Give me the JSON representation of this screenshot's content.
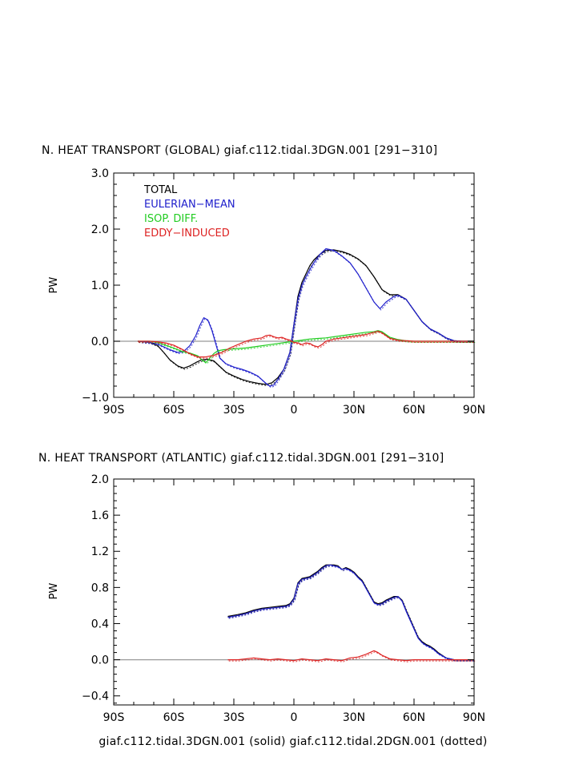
{
  "footer": "giaf.c112.tidal.3DGN.001 (solid) giaf.c112.tidal.2DGN.001 (dotted)",
  "chart_data": [
    {
      "type": "line",
      "title": "N. HEAT TRANSPORT (GLOBAL) giaf.c112.tidal.3DGN.001 [291−310]",
      "xlabel": "",
      "ylabel": "PW",
      "xlim": [
        -90,
        90
      ],
      "ylim": [
        -1.0,
        3.0
      ],
      "xticks": [
        -90,
        -60,
        -30,
        0,
        30,
        60,
        90
      ],
      "xticklabels": [
        "90S",
        "60S",
        "30S",
        "0",
        "30N",
        "60N",
        "90N"
      ],
      "yticks": [
        -1.0,
        0.0,
        1.0,
        2.0,
        3.0
      ],
      "yticklabels": [
        "−1.0",
        "0.0",
        "1.0",
        "2.0",
        "3.0"
      ],
      "legend_position": "top-left",
      "series": [
        {
          "name": "TOTAL",
          "color": "#000000",
          "x": [
            -78,
            -72,
            -68,
            -65,
            -62,
            -58,
            -55,
            -52,
            -49,
            -46,
            -43,
            -40,
            -37,
            -34,
            -30,
            -26,
            -22,
            -18,
            -14,
            -11,
            -8,
            -5,
            -2,
            0,
            2,
            4,
            6,
            8,
            10,
            13,
            16,
            20,
            24,
            28,
            32,
            36,
            40,
            44,
            48,
            52,
            56,
            60,
            64,
            68,
            72,
            76,
            80,
            84,
            90
          ],
          "y": [
            0.0,
            -0.02,
            -0.08,
            -0.2,
            -0.33,
            -0.44,
            -0.48,
            -0.44,
            -0.38,
            -0.33,
            -0.32,
            -0.35,
            -0.45,
            -0.55,
            -0.62,
            -0.68,
            -0.72,
            -0.75,
            -0.77,
            -0.74,
            -0.65,
            -0.5,
            -0.2,
            0.3,
            0.8,
            1.05,
            1.2,
            1.35,
            1.45,
            1.55,
            1.62,
            1.63,
            1.6,
            1.55,
            1.47,
            1.35,
            1.15,
            0.92,
            0.83,
            0.83,
            0.75,
            0.55,
            0.35,
            0.22,
            0.15,
            0.06,
            0.01,
            0.0,
            0.0
          ]
        },
        {
          "name": "EULERIAN−MEAN",
          "color": "#2020cc",
          "x": [
            -78,
            -72,
            -68,
            -65,
            -62,
            -58,
            -55,
            -52,
            -49,
            -47,
            -45,
            -43,
            -41,
            -39,
            -37,
            -34,
            -30,
            -26,
            -22,
            -18,
            -14,
            -12,
            -10,
            -8,
            -5,
            -2,
            0,
            2,
            4,
            6,
            8,
            10,
            13,
            16,
            20,
            24,
            28,
            32,
            36,
            40,
            43,
            46,
            50,
            52,
            56,
            60,
            64,
            68,
            72,
            76,
            80,
            84,
            90
          ],
          "y": [
            0.0,
            -0.02,
            -0.05,
            -0.1,
            -0.15,
            -0.2,
            -0.18,
            -0.08,
            0.1,
            0.28,
            0.42,
            0.38,
            0.2,
            -0.05,
            -0.3,
            -0.4,
            -0.46,
            -0.5,
            -0.55,
            -0.62,
            -0.75,
            -0.8,
            -0.78,
            -0.68,
            -0.5,
            -0.2,
            0.3,
            0.75,
            1.0,
            1.15,
            1.28,
            1.4,
            1.55,
            1.65,
            1.62,
            1.52,
            1.4,
            1.2,
            0.95,
            0.7,
            0.58,
            0.7,
            0.8,
            0.82,
            0.75,
            0.55,
            0.35,
            0.22,
            0.15,
            0.06,
            0.01,
            0.0,
            0.0
          ]
        },
        {
          "name": "ISOP. DIFF.",
          "color": "#22cc22",
          "x": [
            -78,
            -72,
            -68,
            -64,
            -60,
            -56,
            -52,
            -48,
            -46,
            -44,
            -42,
            -40,
            -38,
            -35,
            -32,
            -28,
            -24,
            -20,
            -16,
            -12,
            -8,
            -4,
            0,
            4,
            8,
            12,
            16,
            20,
            24,
            28,
            32,
            36,
            40,
            42,
            44,
            46,
            48,
            52,
            56,
            60,
            64,
            68,
            72,
            76,
            80,
            84,
            90
          ],
          "y": [
            0.0,
            0.0,
            -0.02,
            -0.07,
            -0.12,
            -0.18,
            -0.21,
            -0.26,
            -0.33,
            -0.38,
            -0.3,
            -0.22,
            -0.17,
            -0.15,
            -0.14,
            -0.13,
            -0.12,
            -0.1,
            -0.08,
            -0.06,
            -0.04,
            -0.02,
            0.0,
            0.02,
            0.04,
            0.05,
            0.06,
            0.08,
            0.1,
            0.12,
            0.14,
            0.16,
            0.17,
            0.19,
            0.17,
            0.12,
            0.07,
            0.03,
            0.01,
            0.0,
            0.0,
            0.0,
            0.0,
            0.0,
            0.0,
            0.0,
            0.0
          ]
        },
        {
          "name": "EDDY−INDUCED",
          "color": "#dd2222",
          "x": [
            -78,
            -72,
            -68,
            -64,
            -60,
            -56,
            -52,
            -48,
            -44,
            -40,
            -36,
            -32,
            -28,
            -24,
            -20,
            -16,
            -14,
            -12,
            -10,
            -8,
            -6,
            -4,
            -2,
            0,
            2,
            4,
            6,
            8,
            10,
            12,
            14,
            16,
            18,
            20,
            24,
            28,
            32,
            36,
            40,
            42,
            44,
            46,
            48,
            52,
            56,
            60,
            64,
            68,
            72,
            76,
            80,
            84,
            90
          ],
          "y": [
            0.0,
            0.0,
            -0.01,
            -0.03,
            -0.07,
            -0.14,
            -0.22,
            -0.28,
            -0.28,
            -0.25,
            -0.2,
            -0.12,
            -0.06,
            0.0,
            0.04,
            0.06,
            0.1,
            0.11,
            0.08,
            0.06,
            0.07,
            0.04,
            0.02,
            -0.02,
            -0.03,
            -0.06,
            -0.03,
            -0.04,
            -0.08,
            -0.1,
            -0.06,
            0.0,
            0.02,
            0.04,
            0.06,
            0.08,
            0.1,
            0.12,
            0.16,
            0.18,
            0.15,
            0.1,
            0.05,
            0.02,
            0.01,
            0.0,
            0.0,
            0.0,
            0.0,
            0.0,
            0.0,
            0.0,
            0.0
          ]
        }
      ]
    },
    {
      "type": "line",
      "title": "N. HEAT TRANSPORT (ATLANTIC) giaf.c112.tidal.3DGN.001 [291−310]",
      "xlabel": "giaf.c112.tidal.3DGN.001 (solid) giaf.c112.tidal.2DGN.001 (dotted)",
      "ylabel": "PW",
      "xlim": [
        -90,
        90
      ],
      "ylim": [
        -0.5,
        2.0
      ],
      "xticks": [
        -90,
        -60,
        -30,
        0,
        30,
        60,
        90
      ],
      "xticklabels": [
        "90S",
        "60S",
        "30S",
        "0",
        "30N",
        "60N",
        "90N"
      ],
      "yticks": [
        -0.4,
        0.0,
        0.4,
        0.8,
        1.2,
        1.6,
        2.0
      ],
      "yticklabels": [
        "−0.4",
        "0.0",
        "0.4",
        "0.8",
        "1.2",
        "1.6",
        "2.0"
      ],
      "series": [
        {
          "name": "TOTAL",
          "color": "#000000",
          "x": [
            -33,
            -28,
            -24,
            -20,
            -16,
            -12,
            -8,
            -4,
            -2,
            0,
            2,
            4,
            8,
            10,
            12,
            14,
            16,
            18,
            20,
            22,
            24,
            26,
            28,
            30,
            32,
            34,
            36,
            38,
            40,
            42,
            44,
            46,
            48,
            50,
            52,
            54,
            56,
            58,
            60,
            62,
            64,
            66,
            68,
            70,
            72,
            76,
            80,
            84,
            90
          ],
          "y": [
            0.48,
            0.5,
            0.52,
            0.55,
            0.57,
            0.58,
            0.59,
            0.6,
            0.62,
            0.68,
            0.85,
            0.9,
            0.92,
            0.95,
            0.98,
            1.02,
            1.05,
            1.05,
            1.05,
            1.04,
            1.0,
            1.02,
            1.0,
            0.97,
            0.92,
            0.88,
            0.8,
            0.72,
            0.64,
            0.62,
            0.63,
            0.66,
            0.68,
            0.7,
            0.7,
            0.66,
            0.55,
            0.45,
            0.35,
            0.25,
            0.2,
            0.17,
            0.15,
            0.12,
            0.08,
            0.02,
            0.0,
            0.0,
            0.0
          ]
        },
        {
          "name": "EULERIAN−MEAN",
          "color": "#2020cc",
          "x": [
            -33,
            -28,
            -24,
            -20,
            -16,
            -12,
            -8,
            -4,
            -2,
            0,
            2,
            4,
            8,
            10,
            12,
            14,
            16,
            18,
            20,
            22,
            24,
            26,
            28,
            30,
            32,
            34,
            36,
            38,
            40,
            42,
            44,
            46,
            48,
            50,
            52,
            54,
            56,
            58,
            60,
            62,
            64,
            66,
            68,
            70,
            72,
            76,
            80,
            84,
            90
          ],
          "y": [
            0.47,
            0.49,
            0.51,
            0.54,
            0.56,
            0.57,
            0.58,
            0.59,
            0.61,
            0.67,
            0.84,
            0.89,
            0.91,
            0.94,
            0.97,
            1.01,
            1.04,
            1.05,
            1.04,
            1.03,
            1.0,
            1.01,
            0.99,
            0.96,
            0.91,
            0.87,
            0.79,
            0.71,
            0.63,
            0.61,
            0.62,
            0.65,
            0.67,
            0.69,
            0.7,
            0.65,
            0.54,
            0.44,
            0.34,
            0.24,
            0.19,
            0.16,
            0.14,
            0.11,
            0.07,
            0.02,
            0.0,
            0.0,
            0.0
          ]
        },
        {
          "name": "EDDY−INDUCED",
          "color": "#dd2222",
          "x": [
            -33,
            -28,
            -24,
            -20,
            -16,
            -12,
            -8,
            -4,
            0,
            4,
            8,
            12,
            16,
            20,
            24,
            28,
            32,
            36,
            38,
            40,
            42,
            44,
            46,
            48,
            52,
            56,
            60,
            64,
            68,
            72,
            76,
            80,
            84,
            90
          ],
          "y": [
            0.0,
            0.0,
            0.01,
            0.02,
            0.01,
            0.0,
            0.01,
            0.0,
            -0.01,
            0.01,
            0.0,
            -0.01,
            0.01,
            0.0,
            -0.01,
            0.02,
            0.03,
            0.06,
            0.08,
            0.1,
            0.08,
            0.05,
            0.03,
            0.01,
            0.0,
            -0.01,
            0.0,
            0.0,
            0.0,
            0.0,
            0.0,
            0.0,
            0.0,
            0.0
          ]
        }
      ]
    }
  ]
}
